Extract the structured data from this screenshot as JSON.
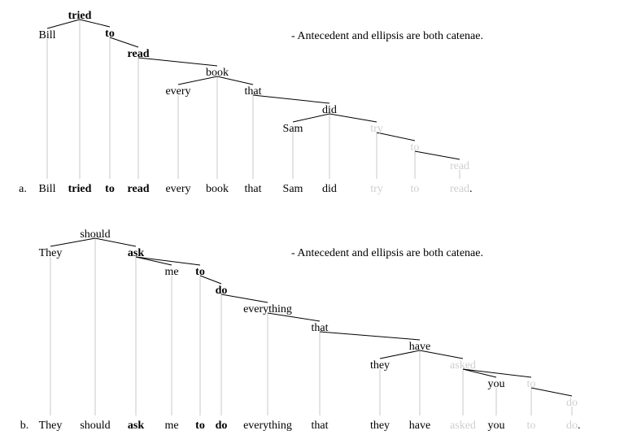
{
  "trees": [
    {
      "label": "a.",
      "note": "- Antecedent and ellipsis are both catenae.",
      "final_punct": ".",
      "words": [
        {
          "text": "Bill",
          "style": "normal",
          "head": 1
        },
        {
          "text": "tried",
          "style": "bold",
          "head": null
        },
        {
          "text": "to",
          "style": "bold",
          "head": 1
        },
        {
          "text": "read",
          "style": "bold",
          "head": 2
        },
        {
          "text": "every",
          "style": "normal",
          "head": 5
        },
        {
          "text": "book",
          "style": "normal",
          "head": 3
        },
        {
          "text": "that",
          "style": "normal",
          "head": 5
        },
        {
          "text": "Sam",
          "style": "normal",
          "head": 8
        },
        {
          "text": "did",
          "style": "normal",
          "head": 6
        },
        {
          "text": "try",
          "style": "gray",
          "head": 8
        },
        {
          "text": "to",
          "style": "gray",
          "head": 9
        },
        {
          "text": "read",
          "style": "gray",
          "head": 10
        }
      ]
    },
    {
      "label": "b.",
      "note": "- Antecedent and ellipsis are both catenae.",
      "final_punct": ".",
      "words": [
        {
          "text": "They",
          "style": "normal",
          "head": 1
        },
        {
          "text": "should",
          "style": "normal",
          "head": null
        },
        {
          "text": "ask",
          "style": "bold",
          "head": 1
        },
        {
          "text": "me",
          "style": "normal",
          "head": 2
        },
        {
          "text": "to",
          "style": "bold",
          "head": 2
        },
        {
          "text": "do",
          "style": "bold",
          "head": 4
        },
        {
          "text": "everything",
          "style": "normal",
          "head": 5
        },
        {
          "text": "that",
          "style": "normal",
          "head": 6
        },
        {
          "text": "they",
          "style": "normal",
          "head": 9
        },
        {
          "text": "have",
          "style": "normal",
          "head": 7
        },
        {
          "text": "asked",
          "style": "gray",
          "head": 9
        },
        {
          "text": "you",
          "style": "normal",
          "head": 10
        },
        {
          "text": "to",
          "style": "gray",
          "head": 10
        },
        {
          "text": "do",
          "style": "gray",
          "head": 12
        }
      ]
    }
  ],
  "colors": {
    "edge": "#000000",
    "projection": "#c8c8c8",
    "elided": "#cfcfcf"
  }
}
